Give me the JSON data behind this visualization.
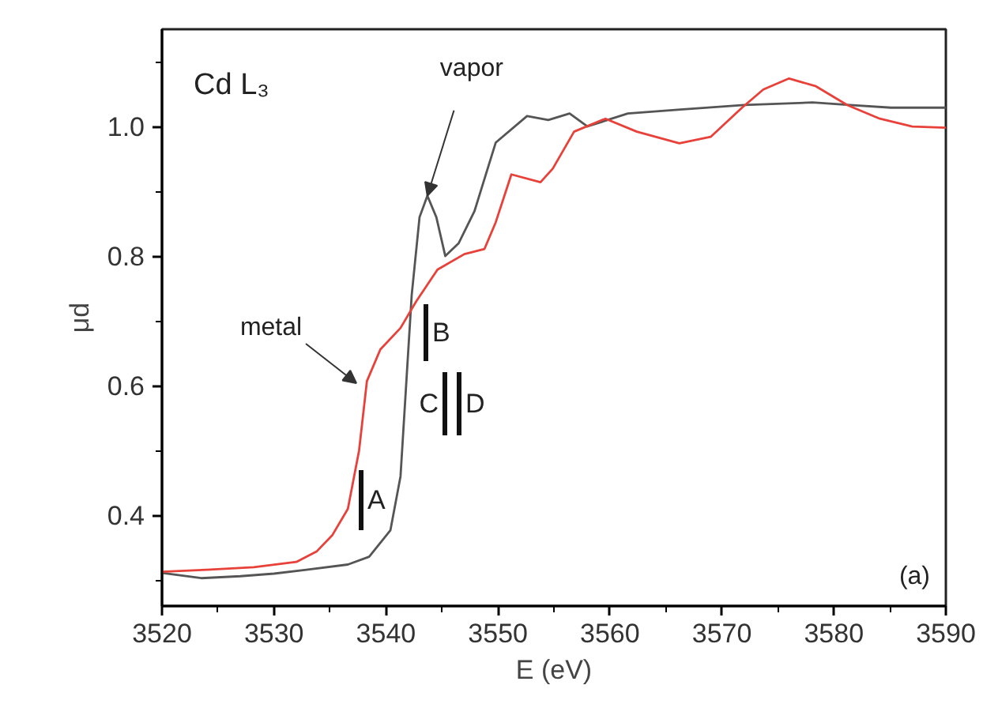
{
  "chart_data": {
    "type": "line",
    "xlabel": "E (eV)",
    "ylabel": "μd",
    "xlim": [
      3520,
      3590
    ],
    "ylim": [
      0.26,
      1.15
    ],
    "xticks": [
      3520,
      {
        "value": 3525,
        "label": null
      },
      3530,
      {
        "value": 3535,
        "label": null
      },
      3540,
      {
        "value": 3545,
        "label": null
      },
      3550,
      {
        "value": 3555,
        "label": null
      },
      3560,
      {
        "value": 3565,
        "label": null
      },
      3570,
      {
        "value": 3575,
        "label": null
      },
      3580,
      {
        "value": 3585,
        "label": null
      },
      3590
    ],
    "yticks": [
      {
        "value": 0.3,
        "label": null
      },
      0.4,
      {
        "value": 0.5,
        "label": null
      },
      0.6,
      {
        "value": 0.7,
        "label": null
      },
      0.8,
      {
        "value": 0.9,
        "label": null
      },
      {
        "value": 1.0,
        "label": "1.0"
      },
      {
        "value": 1.1,
        "label": null
      }
    ],
    "grid": false,
    "marker": "none",
    "line_style": "solid",
    "series": [
      {
        "color": "#555555",
        "x": [
          3520,
          3523.5,
          3527,
          3530,
          3532.9,
          3536.6,
          3538.5,
          3540.4,
          3541.3,
          3542.3,
          3543,
          3543.7,
          3544.5,
          3545.3,
          3546.5,
          3547.9,
          3549.8,
          3552.6,
          3554.5,
          3556.4,
          3558,
          3561.6,
          3566.3,
          3572,
          3578.1,
          3581.4,
          3585.1,
          3590
        ],
        "values": [
          0.311,
          0.303,
          0.306,
          0.31,
          0.316,
          0.324,
          0.336,
          0.377,
          0.46,
          0.74,
          0.86,
          0.893,
          0.86,
          0.8,
          0.82,
          0.869,
          0.975,
          1.016,
          1.01,
          1.02,
          1.0,
          1.02,
          1.026,
          1.033,
          1.037,
          1.033,
          1.029,
          1.029
        ]
      },
      {
        "color": "#e8413a",
        "x": [
          3520,
          3524,
          3528.2,
          3532,
          3533.8,
          3535.2,
          3536.6,
          3537.6,
          3538.3,
          3539.5,
          3541.3,
          3542.7,
          3544.6,
          3547,
          3548.8,
          3549.8,
          3551.2,
          3553.8,
          3554.9,
          3556.8,
          3559.6,
          3562.4,
          3566.2,
          3569,
          3571.8,
          3573.7,
          3576,
          3578.4,
          3581.2,
          3584.1,
          3587,
          3590
        ],
        "values": [
          0.313,
          0.316,
          0.32,
          0.328,
          0.344,
          0.369,
          0.41,
          0.5,
          0.607,
          0.656,
          0.689,
          0.73,
          0.779,
          0.803,
          0.811,
          0.852,
          0.926,
          0.914,
          0.935,
          0.992,
          1.012,
          0.992,
          0.974,
          0.984,
          1.029,
          1.057,
          1.074,
          1.062,
          1.033,
          1.012,
          1.0,
          0.998
        ]
      }
    ],
    "annotations": [
      "Cd L₃",
      "(a)",
      {
        "text": "vapor",
        "x": 3543.7,
        "y": 0.893
      },
      "metal",
      "A",
      "B",
      "C",
      "D"
    ]
  }
}
